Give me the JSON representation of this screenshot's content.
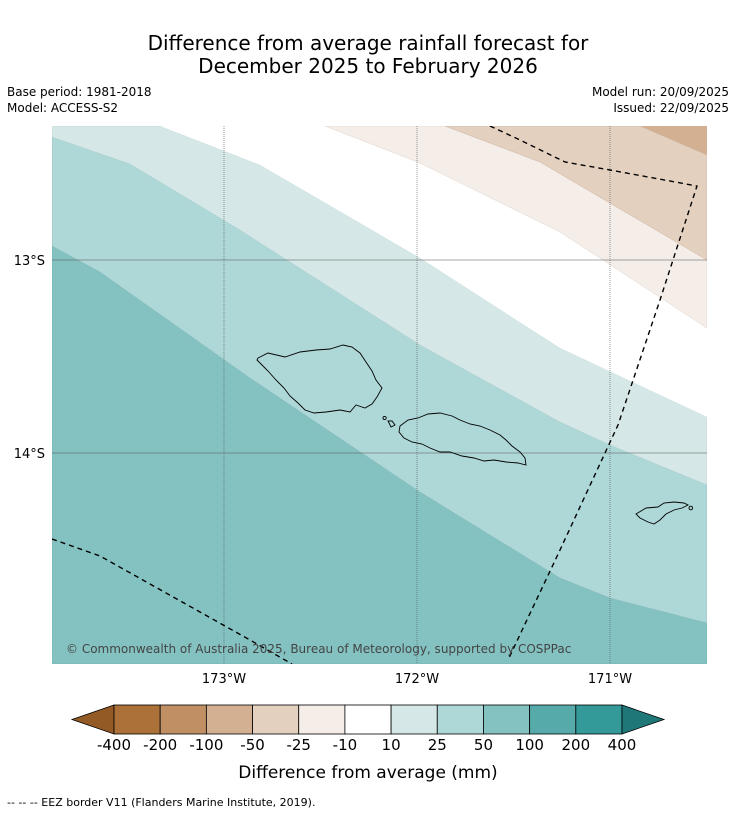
{
  "title": {
    "line1": "Difference from average rainfall forecast for",
    "line2": "December 2025 to February 2026"
  },
  "meta": {
    "base_period": "Base period: 1981-2018",
    "model": "Model: ACCESS-S2",
    "model_run": "Model run: 20/09/2025",
    "issued": "Issued: 22/09/2025"
  },
  "map": {
    "lat_labels": [
      "13°S",
      "14°S"
    ],
    "lon_labels": [
      "173°W",
      "172°W",
      "171°W"
    ],
    "copyright": "© Commonwealth of Australia 2025, Bureau of Meteorology, supported by COSPPac"
  },
  "colorbar": {
    "ticks": [
      "-400",
      "-200",
      "-100",
      "-50",
      "-25",
      "-10",
      "10",
      "25",
      "50",
      "100",
      "200",
      "400"
    ],
    "colors": [
      "#ab7139",
      "#c09064",
      "#d3b091",
      "#e3d0bf",
      "#f5ede8",
      "#ffffff",
      "#d5e8e7",
      "#aed7d7",
      "#84c2c2",
      "#57aaaa",
      "#349999"
    ],
    "under_color": "#935a26",
    "over_color": "#1f7777",
    "label": "Difference from average (mm)"
  },
  "footnote": "--  --  -- EEZ border V11 (Flanders Marine Institute, 2019)."
}
